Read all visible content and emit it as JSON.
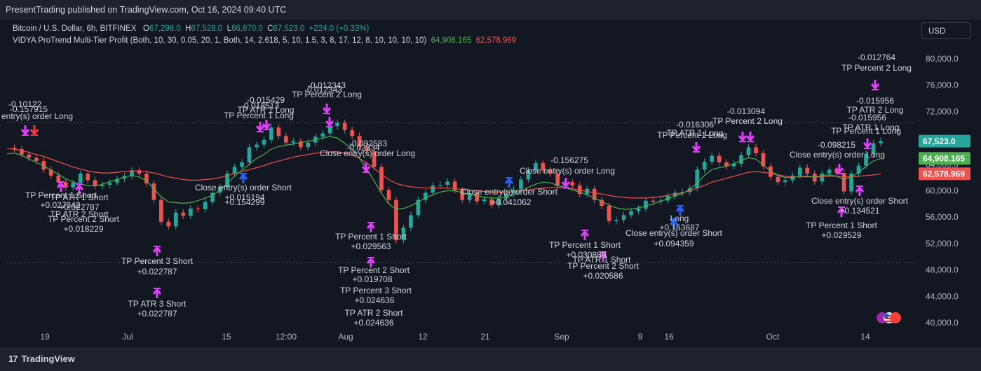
{
  "header": {
    "published": "PresentTrading published on TradingView.com, Oct 16, 2024 09:40 UTC"
  },
  "legend": {
    "symbol": "Bitcoin / U.S. Dollar, 6h, BITFINEX",
    "o_label": "O",
    "o": "67,298.0",
    "h_label": "H",
    "h": "67,528.0",
    "l_label": "L",
    "l": "66,870.0",
    "c_label": "C",
    "c": "67,523.0",
    "change": "+224.0 (+0.33%)",
    "indicator": "VIDYA ProTrend Multi-Tier Profit (Both, 10, 30, 0.05, 20, 1, Both, 14, 2.618, 5, 10, 1.5, 3, 8, 17, 12, 8, 10, 10, 10, 10)",
    "ind_value1": "64,908.165",
    "ind_value2": "62,578.969"
  },
  "currency_button": "USD",
  "footer": {
    "brand": "TradingView",
    "brand_mark": "17"
  },
  "colors": {
    "up": "#26a69a",
    "down": "#ef5350",
    "fast_line": "#4caf50",
    "slow_line": "#ef5350",
    "marker_magenta": "#e040fb",
    "marker_blue": "#2962ff",
    "marker_red": "#f23645",
    "bg": "#131722"
  },
  "chart_data": {
    "type": "line",
    "yaxis": {
      "ticks": [
        "80,000.0",
        "76,000.0",
        "72,000.0",
        "64,000.0",
        "60,000.0",
        "56,000.0",
        "52,000.0",
        "48,000.0",
        "44,000.0",
        "40,000.0"
      ],
      "tick_values": [
        80000,
        76000,
        72000,
        64000,
        60000,
        56000,
        52000,
        48000,
        44000,
        40000
      ],
      "ylim": [
        39000,
        82000
      ]
    },
    "xaxis": {
      "labels": [
        "19",
        "Jul",
        "15",
        "12:00",
        "Aug",
        "12",
        "21",
        "Sep",
        "9",
        "16",
        "Oct",
        "14"
      ]
    },
    "price_tags": [
      {
        "text": "67,523.0",
        "value": 67523,
        "color": "#26a69a"
      },
      {
        "text": "64,908.165",
        "value": 64908.165,
        "color": "#4caf50"
      },
      {
        "text": "62,578.969",
        "value": 62578.969,
        "color": "#ef5350"
      }
    ],
    "dotted_levels": [
      70300,
      49100
    ],
    "close_series": [
      66500,
      66300,
      65500,
      65000,
      64500,
      63200,
      62300,
      61300,
      60500,
      61200,
      62600,
      61600,
      60700,
      60900,
      61200,
      61800,
      62200,
      63100,
      62600,
      61100,
      58600,
      55300,
      54600,
      56700,
      56200,
      57300,
      57200,
      58300,
      59700,
      60600,
      62600,
      63600,
      64300,
      66600,
      67000,
      67700,
      69600,
      68300,
      67300,
      67500,
      66600,
      67300,
      68200,
      68700,
      69800,
      70300,
      69200,
      68300,
      66700,
      66000,
      63600,
      60100,
      58600,
      52500,
      54400,
      56300,
      58600,
      59700,
      60800,
      60900,
      61400,
      60100,
      58600,
      59600,
      58400,
      58700,
      57800,
      58800,
      59600,
      60200,
      61700,
      63100,
      64200,
      63100,
      62600,
      60700,
      61300,
      60800,
      59500,
      60300,
      58600,
      57700,
      55400,
      55600,
      56300,
      56900,
      57300,
      58500,
      58300,
      58500,
      59200,
      59700,
      59800,
      60400,
      63200,
      64400,
      65300,
      64300,
      63700,
      64100,
      65400,
      66600,
      65700,
      63700,
      62100,
      61300,
      61600,
      62300,
      63500,
      62600,
      61400,
      62600,
      63200,
      62700,
      59900,
      62600,
      63800,
      65600,
      67200,
      67523
    ],
    "fast_vidya": [
      65600,
      65700,
      65400,
      64800,
      64300,
      63800,
      63100,
      62500,
      61800,
      61300,
      61000,
      60800,
      60700,
      61000,
      61400,
      61700,
      62100,
      62300,
      62100,
      61500,
      60300,
      59100,
      58300,
      58200,
      58100,
      58200,
      58500,
      58900,
      59300,
      60100,
      61100,
      62200,
      63100,
      64000,
      64900,
      65500,
      66300,
      66700,
      66900,
      67100,
      67300,
      67500,
      67700,
      68000,
      68200,
      68000,
      67200,
      66300,
      64900,
      63300,
      61500,
      59600,
      58000,
      57200,
      57300,
      57700,
      58300,
      58900,
      59400,
      59800,
      60000,
      60000,
      59700,
      59500,
      59200,
      59000,
      58900,
      58900,
      59100,
      59400,
      59900,
      60500,
      61000,
      61300,
      61200,
      60800,
      60500,
      60100,
      59800,
      59400,
      58900,
      58400,
      57800,
      57400,
      57200,
      57200,
      57400,
      57700,
      58000,
      58400,
      58800,
      59200,
      59600,
      60200,
      61200,
      62300,
      63200,
      63500,
      63700,
      64100,
      64600,
      65000,
      64800,
      63900,
      63000,
      62300,
      62000,
      62000,
      62200,
      62200,
      62100,
      62300,
      62400,
      62200,
      61700,
      62100,
      62800,
      63700,
      64500,
      64908
    ],
    "slow_vidya": [
      66400,
      66300,
      66100,
      65800,
      65500,
      65200,
      64800,
      64400,
      64000,
      63600,
      63300,
      63000,
      62800,
      62700,
      62700,
      62800,
      62900,
      63000,
      63000,
      62900,
      62700,
      62400,
      62100,
      61900,
      61700,
      61600,
      61600,
      61700,
      61800,
      62000,
      62300,
      62600,
      62900,
      63200,
      63500,
      63800,
      64200,
      64500,
      64800,
      65100,
      65300,
      65500,
      65700,
      65800,
      65900,
      65900,
      65700,
      65400,
      64900,
      64200,
      63400,
      62500,
      61700,
      61100,
      60800,
      60600,
      60500,
      60400,
      60400,
      60400,
      60400,
      60300,
      60200,
      60100,
      60000,
      59900,
      59800,
      59800,
      59800,
      59900,
      60000,
      60100,
      60300,
      60400,
      60500,
      60500,
      60400,
      60300,
      60100,
      59900,
      59700,
      59500,
      59300,
      59100,
      59000,
      58900,
      58900,
      58900,
      59000,
      59100,
      59300,
      59500,
      59700,
      60000,
      60400,
      60800,
      61300,
      61600,
      61900,
      62200,
      62500,
      62800,
      62900,
      62800,
      62600,
      62400,
      62200,
      62100,
      62100,
      62100,
      62100,
      62100,
      62200,
      62200,
      62100,
      62100,
      62200,
      62300,
      62400,
      62579
    ],
    "annotations": [
      {
        "text": "-0.10122",
        "x": 12,
        "y": 153,
        "anchor": "start"
      },
      {
        "text": "-0.157915",
        "x": 14,
        "y": 160,
        "anchor": "start"
      },
      {
        "text": "entry(s) order Long",
        "x": 2,
        "y": 170,
        "anchor": "start"
      },
      {
        "text": "-0.015429",
        "x": 379,
        "y": 147,
        "anchor": "middle"
      },
      {
        "text": "-0.018513",
        "x": 371,
        "y": 155,
        "anchor": "middle"
      },
      {
        "text": "TP ATR 1 Long",
        "x": 379,
        "y": 161,
        "anchor": "middle"
      },
      {
        "text": "TP Percent 1 Long",
        "x": 369,
        "y": 169,
        "anchor": "middle"
      },
      {
        "text": "-0.012343",
        "x": 466,
        "y": 126,
        "anchor": "middle"
      },
      {
        "text": "-0.012343",
        "x": 461,
        "y": 132,
        "anchor": "middle"
      },
      {
        "text": "TP Percent 2 Long",
        "x": 466,
        "y": 139,
        "anchor": "middle"
      },
      {
        "text": "-0.092583",
        "x": 525,
        "y": 209,
        "anchor": "middle"
      },
      {
        "text": "-0.02334",
        "x": 518,
        "y": 215,
        "anchor": "middle"
      },
      {
        "text": "Close entry(s) order Long",
        "x": 524,
        "y": 223,
        "anchor": "middle"
      },
      {
        "text": "-0.012764",
        "x": 1250,
        "y": 86,
        "anchor": "middle"
      },
      {
        "text": "TP Percent 2 Long",
        "x": 1250,
        "y": 101,
        "anchor": "middle"
      },
      {
        "text": "-0.015956",
        "x": 1248,
        "y": 148,
        "anchor": "middle"
      },
      {
        "text": "TP ATR 2 Long",
        "x": 1248,
        "y": 161,
        "anchor": "middle"
      },
      {
        "text": "-0.015956",
        "x": 1237,
        "y": 172,
        "anchor": "middle"
      },
      {
        "text": "TP ATR 1 Long",
        "x": 1242,
        "y": 186,
        "anchor": "middle"
      },
      {
        "text": "TP Percent 1 Long",
        "x": 1235,
        "y": 191,
        "anchor": "middle"
      },
      {
        "text": "-0.098215",
        "x": 1193,
        "y": 211,
        "anchor": "middle"
      },
      {
        "text": "Close entry(s) order Long",
        "x": 1194,
        "y": 225,
        "anchor": "middle"
      },
      {
        "text": "-0.013094",
        "x": 1064,
        "y": 163,
        "anchor": "middle"
      },
      {
        "text": "TP Percent 2 Long",
        "x": 1066,
        "y": 177,
        "anchor": "middle"
      },
      {
        "text": "-0.016306",
        "x": 991,
        "y": 182,
        "anchor": "middle"
      },
      {
        "text": "TP ATR 1 Long",
        "x": 991,
        "y": 194,
        "anchor": "middle"
      },
      {
        "text": "TP Percent 1 Long",
        "x": 987,
        "y": 197,
        "anchor": "middle"
      },
      {
        "text": "-0.156275",
        "x": 812,
        "y": 233,
        "anchor": "middle"
      },
      {
        "text": "Close entry(s) order Long",
        "x": 809,
        "y": 248,
        "anchor": "middle"
      },
      {
        "text": "TP Percent 1 Short",
        "x": 87,
        "y": 283,
        "anchor": "middle"
      },
      {
        "text": "TP ATR 1 Short",
        "x": 113,
        "y": 286,
        "anchor": "middle"
      },
      {
        "text": "+0.027342",
        "x": 86,
        "y": 297,
        "anchor": "middle"
      },
      {
        "text": "+0.022787",
        "x": 113,
        "y": 300,
        "anchor": "middle"
      },
      {
        "text": "TP ATR 2 Short",
        "x": 113,
        "y": 310,
        "anchor": "middle"
      },
      {
        "text": "TP Percent 2 Short",
        "x": 119,
        "y": 317,
        "anchor": "middle"
      },
      {
        "text": "+0.018229",
        "x": 119,
        "y": 331,
        "anchor": "middle"
      },
      {
        "text": "TP Percent 3 Short",
        "x": 224,
        "y": 377,
        "anchor": "middle"
      },
      {
        "text": "+0.022787",
        "x": 224,
        "y": 392,
        "anchor": "middle"
      },
      {
        "text": "TP ATR 3 Short",
        "x": 224,
        "y": 438,
        "anchor": "middle"
      },
      {
        "text": "+0.022787",
        "x": 224,
        "y": 452,
        "anchor": "middle"
      },
      {
        "text": "Close entry(s) order Short",
        "x": 347,
        "y": 272,
        "anchor": "middle"
      },
      {
        "text": "+0.015194",
        "x": 349,
        "y": 286,
        "anchor": "middle"
      },
      {
        "text": "+0.154299",
        "x": 349,
        "y": 293,
        "anchor": "middle"
      },
      {
        "text": "TP Percent 1 Short",
        "x": 529,
        "y": 342,
        "anchor": "middle"
      },
      {
        "text": "+0.029563",
        "x": 529,
        "y": 356,
        "anchor": "middle"
      },
      {
        "text": "TP Percent 2 Short",
        "x": 533,
        "y": 390,
        "anchor": "middle"
      },
      {
        "text": "+0.019708",
        "x": 531,
        "y": 403,
        "anchor": "middle"
      },
      {
        "text": "TP Percent 3 Short",
        "x": 536,
        "y": 419,
        "anchor": "middle"
      },
      {
        "text": "+0.024636",
        "x": 534,
        "y": 433,
        "anchor": "middle"
      },
      {
        "text": "TP ATR 2 Short",
        "x": 533,
        "y": 451,
        "anchor": "middle"
      },
      {
        "text": "+0.024636",
        "x": 533,
        "y": 465,
        "anchor": "middle"
      },
      {
        "text": "Close entry(s) order Short",
        "x": 726,
        "y": 278,
        "anchor": "middle"
      },
      {
        "text": "+0.041062",
        "x": 729,
        "y": 293,
        "anchor": "middle"
      },
      {
        "text": "TP Percent 1 Short",
        "x": 834,
        "y": 354,
        "anchor": "middle"
      },
      {
        "text": "+0.030889",
        "x": 836,
        "y": 368,
        "anchor": "middle"
      },
      {
        "text": "TP ATR 1 Short",
        "x": 858,
        "y": 375,
        "anchor": "middle"
      },
      {
        "text": "TP Percent 2 Short",
        "x": 860,
        "y": 384,
        "anchor": "middle"
      },
      {
        "text": "+0.020586",
        "x": 860,
        "y": 398,
        "anchor": "middle"
      },
      {
        "text": "Long",
        "x": 969,
        "y": 316,
        "anchor": "middle"
      },
      {
        "text": "+0.163687",
        "x": 969,
        "y": 329,
        "anchor": "middle"
      },
      {
        "text": "Close entry(s) order Short",
        "x": 961,
        "y": 337,
        "anchor": "middle"
      },
      {
        "text": "+0.094359",
        "x": 961,
        "y": 352,
        "anchor": "middle"
      },
      {
        "text": "Close entry(s) order Short",
        "x": 1226,
        "y": 291,
        "anchor": "middle"
      },
      {
        "text": "+0.134521",
        "x": 1226,
        "y": 305,
        "anchor": "middle"
      },
      {
        "text": "TP Percent 1 Short",
        "x": 1200,
        "y": 326,
        "anchor": "middle"
      },
      {
        "text": "+0.029529",
        "x": 1200,
        "y": 340,
        "anchor": "middle"
      }
    ],
    "markers": [
      {
        "x": 36,
        "y": 191,
        "dir": "down",
        "color": "#e040fb"
      },
      {
        "x": 49,
        "y": 191,
        "dir": "down",
        "color": "#f23645"
      },
      {
        "x": 371,
        "y": 186,
        "dir": "down",
        "color": "#e040fb"
      },
      {
        "x": 380,
        "y": 183,
        "dir": "down",
        "color": "#e040fb"
      },
      {
        "x": 466,
        "y": 160,
        "dir": "down",
        "color": "#e040fb"
      },
      {
        "x": 470,
        "y": 179,
        "dir": "down",
        "color": "#e040fb"
      },
      {
        "x": 522,
        "y": 244,
        "dir": "down",
        "color": "#e040fb"
      },
      {
        "x": 807,
        "y": 266,
        "dir": "down",
        "color": "#e040fb"
      },
      {
        "x": 993,
        "y": 215,
        "dir": "down",
        "color": "#e040fb"
      },
      {
        "x": 1059,
        "y": 200,
        "dir": "down",
        "color": "#e040fb"
      },
      {
        "x": 1070,
        "y": 200,
        "dir": "down",
        "color": "#e040fb"
      },
      {
        "x": 1197,
        "y": 246,
        "dir": "down",
        "color": "#e040fb"
      },
      {
        "x": 1237,
        "y": 210,
        "dir": "down",
        "color": "#e040fb"
      },
      {
        "x": 1248,
        "y": 126,
        "dir": "down",
        "color": "#e040fb"
      },
      {
        "x": 87,
        "y": 262,
        "dir": "up",
        "color": "#e040fb"
      },
      {
        "x": 113,
        "y": 265,
        "dir": "up",
        "color": "#e040fb"
      },
      {
        "x": 224,
        "y": 354,
        "dir": "up",
        "color": "#e040fb"
      },
      {
        "x": 224,
        "y": 414,
        "dir": "up",
        "color": "#e040fb"
      },
      {
        "x": 347,
        "y": 250,
        "dir": "up",
        "color": "#2962ff"
      },
      {
        "x": 529,
        "y": 320,
        "dir": "up",
        "color": "#e040fb"
      },
      {
        "x": 529,
        "y": 370,
        "dir": "up",
        "color": "#e040fb"
      },
      {
        "x": 726,
        "y": 256,
        "dir": "up",
        "color": "#2962ff"
      },
      {
        "x": 834,
        "y": 331,
        "dir": "up",
        "color": "#e040fb"
      },
      {
        "x": 860,
        "y": 362,
        "dir": "up",
        "color": "#e040fb"
      },
      {
        "x": 961,
        "y": 315,
        "dir": "up",
        "color": "#2962ff"
      },
      {
        "x": 970,
        "y": 296,
        "dir": "up",
        "color": "#2962ff"
      },
      {
        "x": 1200,
        "y": 298,
        "dir": "up",
        "color": "#e040fb"
      },
      {
        "x": 1226,
        "y": 268,
        "dir": "up",
        "color": "#e040fb"
      }
    ]
  }
}
